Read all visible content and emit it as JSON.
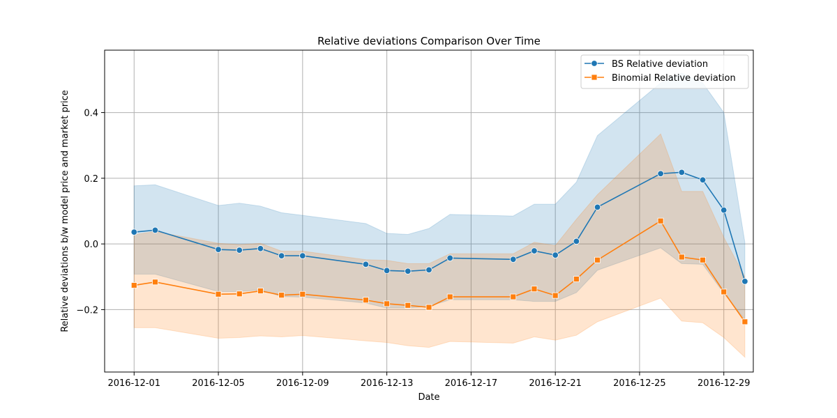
{
  "chart_data": {
    "type": "line",
    "title": "Relative deviations Comparison Over Time",
    "xlabel": "Date",
    "ylabel": "Relative deviations b/w model price and market price",
    "x_ticks": [
      "2016-12-01",
      "2016-12-05",
      "2016-12-09",
      "2016-12-13",
      "2016-12-17",
      "2016-12-21",
      "2016-12-25",
      "2016-12-29"
    ],
    "y_ticks": [
      -0.2,
      0.0,
      0.2,
      0.4
    ],
    "y_tick_labels": [
      "−0.2",
      "0.0",
      "0.2",
      "0.4"
    ],
    "xlim": [
      "2016-11-29.6",
      "2016-12-30.4"
    ],
    "ylim": [
      -0.39,
      0.59
    ],
    "grid": true,
    "legend_position": "top-right",
    "x": [
      "2016-12-01",
      "2016-12-02",
      "2016-12-05",
      "2016-12-06",
      "2016-12-07",
      "2016-12-08",
      "2016-12-09",
      "2016-12-12",
      "2016-12-13",
      "2016-12-14",
      "2016-12-15",
      "2016-12-16",
      "2016-12-19",
      "2016-12-20",
      "2016-12-21",
      "2016-12-22",
      "2016-12-23",
      "2016-12-26",
      "2016-12-27",
      "2016-12-28",
      "2016-12-29",
      "2016-12-30"
    ],
    "series": [
      {
        "name": "BS Relative deviation",
        "color": "#1f77b4",
        "band_color": "#1f77b4",
        "marker": "circle",
        "values": [
          0.036,
          0.042,
          -0.017,
          -0.019,
          -0.014,
          -0.036,
          -0.036,
          -0.062,
          -0.081,
          -0.083,
          -0.079,
          -0.043,
          -0.047,
          -0.021,
          -0.034,
          0.008,
          0.112,
          0.214,
          0.218,
          0.195,
          0.103,
          -0.114
        ],
        "ci_upper": [
          0.177,
          0.18,
          0.117,
          0.124,
          0.115,
          0.095,
          0.087,
          0.062,
          0.032,
          0.029,
          0.047,
          0.09,
          0.085,
          0.121,
          0.121,
          0.188,
          0.33,
          0.49,
          0.52,
          0.49,
          0.4,
          0.005
        ],
        "ci_lower": [
          -0.092,
          -0.092,
          -0.145,
          -0.145,
          -0.14,
          -0.16,
          -0.162,
          -0.18,
          -0.195,
          -0.195,
          -0.19,
          -0.17,
          -0.17,
          -0.175,
          -0.175,
          -0.148,
          -0.08,
          -0.012,
          -0.06,
          -0.062,
          -0.15,
          -0.23
        ]
      },
      {
        "name": "Binomial Relative deviation",
        "color": "#ff7f0e",
        "band_color": "#ff7f0e",
        "marker": "square",
        "values": [
          -0.126,
          -0.116,
          -0.153,
          -0.152,
          -0.143,
          -0.156,
          -0.153,
          -0.171,
          -0.182,
          -0.187,
          -0.193,
          -0.161,
          -0.161,
          -0.137,
          -0.157,
          -0.107,
          -0.049,
          0.07,
          -0.04,
          -0.049,
          -0.146,
          -0.237
        ],
        "ci_upper": [
          0.028,
          0.038,
          0.002,
          -0.002,
          0.002,
          -0.022,
          -0.022,
          -0.048,
          -0.05,
          -0.06,
          -0.06,
          -0.03,
          -0.03,
          0.005,
          -0.005,
          0.075,
          0.15,
          0.335,
          0.16,
          0.16,
          0.02,
          -0.1
        ],
        "ci_lower": [
          -0.255,
          -0.255,
          -0.287,
          -0.285,
          -0.28,
          -0.283,
          -0.279,
          -0.295,
          -0.3,
          -0.31,
          -0.315,
          -0.297,
          -0.302,
          -0.283,
          -0.293,
          -0.278,
          -0.237,
          -0.165,
          -0.235,
          -0.24,
          -0.285,
          -0.345
        ]
      }
    ]
  }
}
